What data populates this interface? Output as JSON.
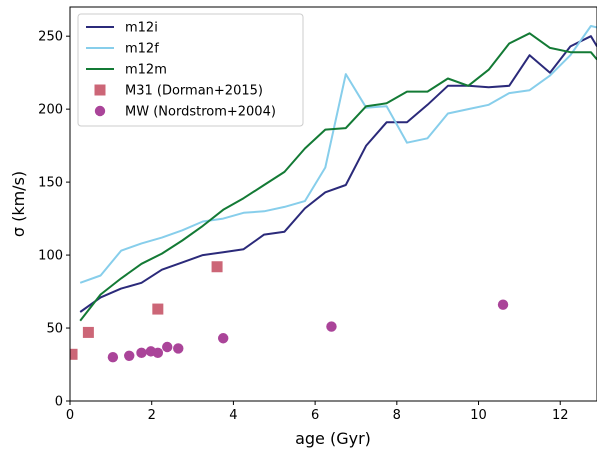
{
  "chart_data": {
    "type": "line",
    "xlabel": "age (Gyr)",
    "ylabel": "σ (km/s)",
    "xlim": [
      0,
      12.9
    ],
    "ylim": [
      0,
      270
    ],
    "xticks": [
      0,
      2,
      4,
      6,
      8,
      10,
      12
    ],
    "yticks": [
      0,
      50,
      100,
      150,
      200,
      250
    ],
    "grid": false,
    "legend_position": "top-left",
    "series": [
      {
        "name": "m12i",
        "kind": "line",
        "color": "#2b2a7a",
        "x": [
          0.25,
          0.75,
          1.25,
          1.75,
          2.25,
          2.75,
          3.25,
          3.75,
          4.25,
          4.75,
          5.25,
          5.75,
          6.25,
          6.75,
          7.25,
          7.75,
          8.25,
          8.75,
          9.25,
          9.75,
          10.25,
          10.75,
          11.25,
          11.75,
          12.25,
          12.75,
          12.9
        ],
        "y": [
          61,
          71,
          77,
          81,
          90,
          95,
          100,
          102,
          104,
          114,
          116,
          132,
          143,
          148,
          175,
          191,
          191,
          203,
          216,
          216,
          215,
          216,
          237,
          225,
          243,
          250,
          243
        ]
      },
      {
        "name": "m12f",
        "kind": "line",
        "color": "#87ceeb",
        "x": [
          0.25,
          0.75,
          1.25,
          1.75,
          2.25,
          2.75,
          3.25,
          3.75,
          4.25,
          4.75,
          5.25,
          5.75,
          6.25,
          6.75,
          7.25,
          7.75,
          8.25,
          8.75,
          9.25,
          9.75,
          10.25,
          10.75,
          11.25,
          11.75,
          12.25,
          12.75,
          12.9
        ],
        "y": [
          81,
          86,
          103,
          108,
          112,
          117,
          123,
          125,
          129,
          130,
          133,
          137,
          160,
          224,
          201,
          202,
          177,
          180,
          197,
          200,
          203,
          211,
          213,
          223,
          237,
          257,
          256
        ]
      },
      {
        "name": "m12m",
        "kind": "line",
        "color": "#137a35",
        "x": [
          0.25,
          0.75,
          1.25,
          1.75,
          2.25,
          2.75,
          3.25,
          3.75,
          4.25,
          4.75,
          5.25,
          5.75,
          6.25,
          6.75,
          7.25,
          7.75,
          8.25,
          8.75,
          9.25,
          9.75,
          10.25,
          10.75,
          11.25,
          11.75,
          12.25,
          12.75,
          12.9
        ],
        "y": [
          55,
          73,
          84,
          94,
          101,
          110,
          120,
          131,
          139,
          148,
          157,
          173,
          186,
          187,
          202,
          204,
          212,
          212,
          221,
          216,
          227,
          245,
          252,
          242,
          239,
          239,
          234
        ]
      },
      {
        "name": "M31 (Dorman+2015)",
        "kind": "square",
        "color": "#cc6677",
        "x": [
          0.05,
          0.45,
          2.15,
          3.6
        ],
        "y": [
          32,
          47,
          63,
          92
        ]
      },
      {
        "name": "MW (Nordstrom+2004)",
        "kind": "circle",
        "color": "#aa4499",
        "x": [
          1.05,
          1.45,
          1.75,
          1.98,
          2.15,
          2.38,
          2.65,
          3.75,
          6.4,
          10.6
        ],
        "y": [
          30,
          31,
          33,
          34,
          33,
          37,
          36,
          43,
          51,
          66
        ]
      }
    ]
  }
}
